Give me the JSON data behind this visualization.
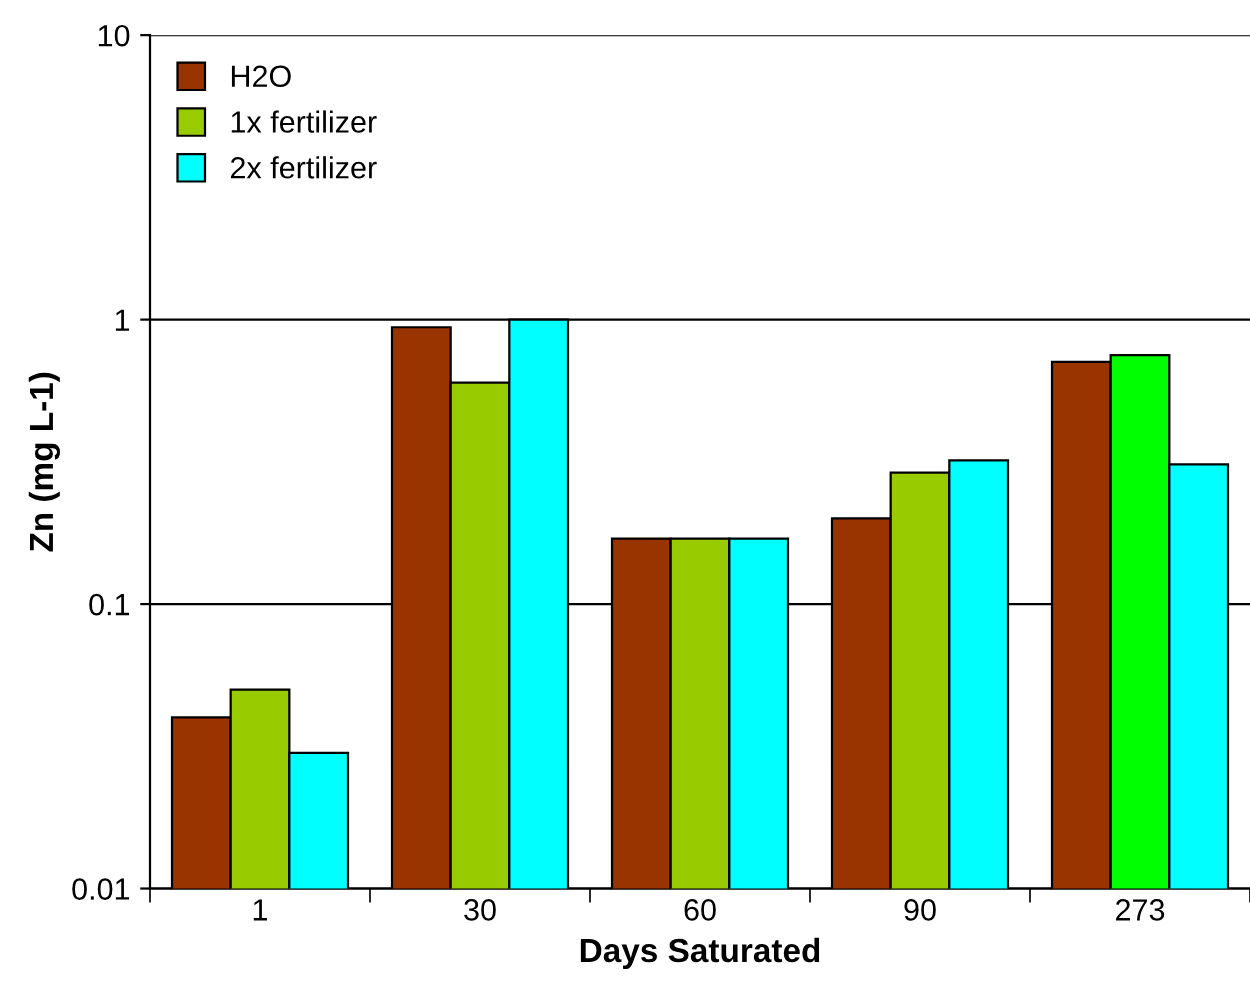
{
  "chart_data": {
    "type": "bar",
    "xlabel": "Days Saturated",
    "ylabel": "Zn (mg L-1)",
    "categories": [
      "1",
      "30",
      "60",
      "90",
      "273"
    ],
    "series": [
      {
        "name": "H2O",
        "color": "#993300",
        "values": [
          0.04,
          0.94,
          0.17,
          0.2,
          0.71
        ]
      },
      {
        "name": "1x fertilizer",
        "color": "#99cc00",
        "colors": [
          "#99cc00",
          "#99cc00",
          "#99cc00",
          "#99cc00",
          "#00ff00"
        ],
        "values": [
          0.05,
          0.6,
          0.17,
          0.29,
          0.75
        ]
      },
      {
        "name": "2x fertilizer",
        "color": "#00ffff",
        "values": [
          0.03,
          1.0,
          0.17,
          0.32,
          0.31
        ]
      }
    ],
    "log": "y",
    "ylim": [
      0.01,
      10
    ],
    "yticks": [
      0.01,
      0.1,
      1,
      10
    ],
    "grid": "y",
    "legend": "top left"
  }
}
